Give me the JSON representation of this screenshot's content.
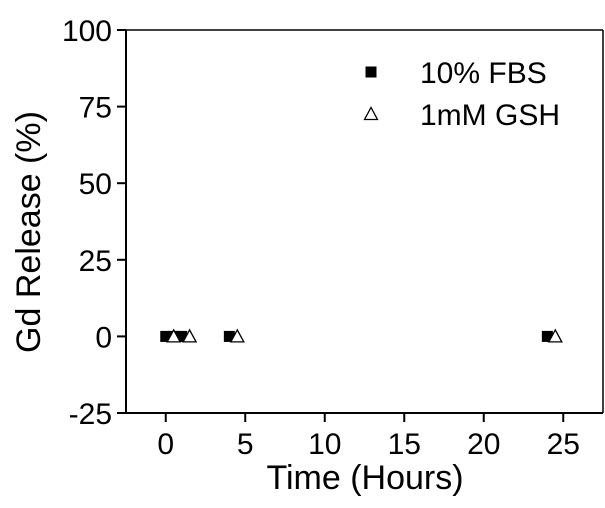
{
  "chart_data": {
    "type": "scatter",
    "title": "",
    "xlabel": "Time (Hours)",
    "ylabel": "Gd Release (%)",
    "xlim": [
      -2.5,
      27.5
    ],
    "ylim": [
      -25,
      100
    ],
    "xticks": [
      0,
      5,
      10,
      15,
      20,
      25
    ],
    "yticks": [
      -25,
      0,
      25,
      50,
      75,
      100
    ],
    "grid": false,
    "legend_position": "top-right",
    "series": [
      {
        "name": "10% FBS",
        "marker": "filled-square",
        "color": "#000000",
        "x": [
          0,
          0.5,
          1,
          4,
          24
        ],
        "y": [
          0,
          0,
          0,
          0,
          0
        ]
      },
      {
        "name": "1mM GSH",
        "marker": "open-triangle",
        "color": "#000000",
        "x": [
          0.5,
          1.5,
          4.5,
          24.5
        ],
        "y": [
          0,
          0,
          0,
          0
        ]
      }
    ]
  }
}
